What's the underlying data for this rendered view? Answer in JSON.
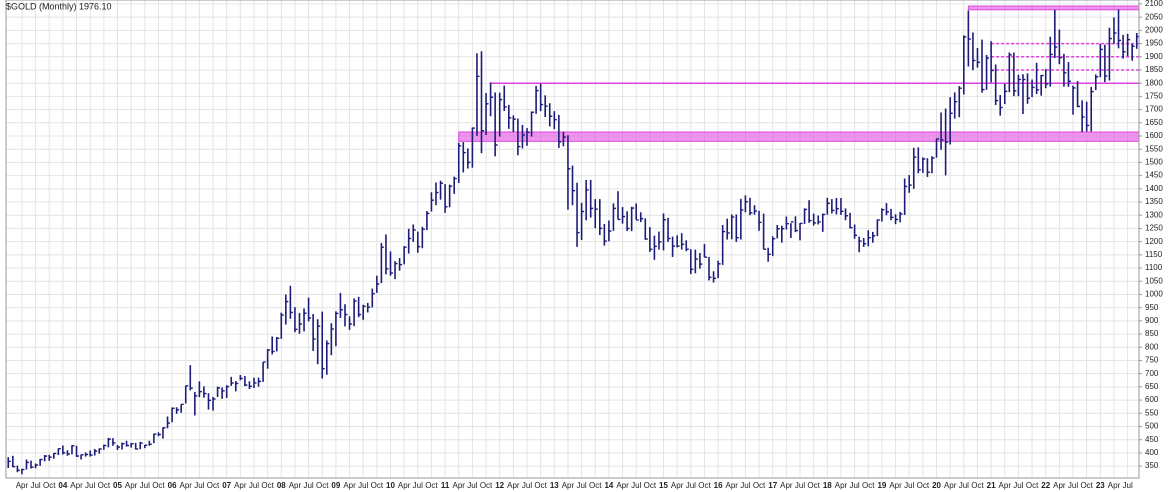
{
  "chart_data": {
    "type": "ohlc",
    "title": "$GOLD (Monthly) 1976.10",
    "categories": [
      null,
      null,
      null,
      "Apr",
      null,
      null,
      "Jul",
      null,
      null,
      "Oct",
      null,
      null,
      "04",
      null,
      null,
      "Apr",
      null,
      null,
      "Jul",
      null,
      null,
      "Oct",
      null,
      null,
      "05",
      null,
      null,
      "Apr",
      null,
      null,
      "Jul",
      null,
      null,
      "Oct",
      null,
      null,
      "06",
      null,
      null,
      "Apr",
      null,
      null,
      "Jul",
      null,
      null,
      "Oct",
      null,
      null,
      "07",
      null,
      null,
      "Apr",
      null,
      null,
      "Jul",
      null,
      null,
      "Oct",
      null,
      null,
      "08",
      null,
      null,
      "Apr",
      null,
      null,
      "Jul",
      null,
      null,
      "Oct",
      null,
      null,
      "09",
      null,
      null,
      "Apr",
      null,
      null,
      "Jul",
      null,
      null,
      "Oct",
      null,
      null,
      "10",
      null,
      null,
      "Apr",
      null,
      null,
      "Jul",
      null,
      null,
      "Oct",
      null,
      null,
      "11",
      null,
      null,
      "Apr",
      null,
      null,
      "Jul",
      null,
      null,
      "Oct",
      null,
      null,
      "12",
      null,
      null,
      "Apr",
      null,
      null,
      "Jul",
      null,
      null,
      "Oct",
      null,
      null,
      "13",
      null,
      null,
      "Apr",
      null,
      null,
      "Jul",
      null,
      null,
      "Oct",
      null,
      null,
      "14",
      null,
      null,
      "Apr",
      null,
      null,
      "Jul",
      null,
      null,
      "Oct",
      null,
      null,
      "15",
      null,
      null,
      "Apr",
      null,
      null,
      "Jul",
      null,
      null,
      "Oct",
      null,
      null,
      "16",
      null,
      null,
      "Apr",
      null,
      null,
      "Jul",
      null,
      null,
      "Oct",
      null,
      null,
      "17",
      null,
      null,
      "Apr",
      null,
      null,
      "Jul",
      null,
      null,
      "Oct",
      null,
      null,
      "18",
      null,
      null,
      "Apr",
      null,
      null,
      "Jul",
      null,
      null,
      "Oct",
      null,
      null,
      "19",
      null,
      null,
      "Apr",
      null,
      null,
      "Jul",
      null,
      null,
      "Oct",
      null,
      null,
      "20",
      null,
      null,
      "Apr",
      null,
      null,
      "Jul",
      null,
      null,
      "Oct",
      null,
      null,
      "21",
      null,
      null,
      "Apr",
      null,
      null,
      "Jul",
      null,
      null,
      "Oct",
      null,
      null,
      "22",
      null,
      null,
      "Apr",
      null,
      null,
      "Jul",
      null,
      null,
      "Oct",
      null,
      null,
      "23",
      null,
      null,
      "Apr",
      null,
      null,
      "Jul",
      null,
      null
    ],
    "high": [
      384,
      389,
      352,
      340,
      375,
      371,
      360,
      377,
      392,
      393,
      399,
      417,
      428,
      410,
      429,
      427,
      394,
      402,
      409,
      415,
      417,
      431,
      457,
      456,
      430,
      439,
      446,
      437,
      438,
      442,
      430,
      446,
      473,
      478,
      497,
      538,
      572,
      573,
      584,
      654,
      732,
      631,
      671,
      652,
      626,
      612,
      651,
      648,
      656,
      688,
      672,
      695,
      691,
      671,
      685,
      685,
      744,
      793,
      841,
      839,
      931,
      1000,
      1033,
      952,
      930,
      947,
      988,
      926,
      906,
      935,
      826,
      891,
      936,
      1006,
      963,
      917,
      985,
      991,
      961,
      968,
      1022,
      1071,
      1195,
      1227,
      1163,
      1126,
      1138,
      1183,
      1249,
      1265,
      1238,
      1256,
      1316,
      1387,
      1424,
      1431,
      1418,
      1416,
      1446,
      1575,
      1577,
      1553,
      1632,
      1913,
      1921,
      1763,
      1803,
      1765,
      1764,
      1791,
      1718,
      1678,
      1666,
      1642,
      1630,
      1693,
      1790,
      1798,
      1754,
      1724,
      1694,
      1680,
      1616,
      1603,
      1488,
      1423,
      1347,
      1434,
      1434,
      1361,
      1361,
      1267,
      1280,
      1345,
      1391,
      1331,
      1315,
      1332,
      1345,
      1311,
      1288,
      1255,
      1223,
      1238,
      1307,
      1290,
      1219,
      1224,
      1232,
      1205,
      1171,
      1170,
      1157,
      1191,
      1142,
      1088,
      1128,
      1263,
      1287,
      1303,
      1303,
      1362,
      1375,
      1366,
      1338,
      1317,
      1306,
      1177,
      1220,
      1263,
      1260,
      1295,
      1270,
      1296,
      1270,
      1326,
      1357,
      1306,
      1299,
      1306,
      1366,
      1361,
      1365,
      1365,
      1326,
      1309,
      1265,
      1219,
      1214,
      1243,
      1237,
      1284,
      1326,
      1346,
      1324,
      1304,
      1313,
      1439,
      1452,
      1555,
      1557,
      1519,
      1516,
      1523,
      1590,
      1689,
      1704,
      1747,
      1765,
      1789,
      1981,
      2075,
      1992,
      1933,
      1965,
      1907,
      1959,
      1871,
      1755,
      1798,
      1916,
      1916,
      1832,
      1834,
      1837,
      1814,
      1877,
      1831,
      1853,
      1976,
      2078,
      2003,
      1911,
      1880,
      1791,
      1808,
      1735,
      1730,
      1786,
      1833,
      1949,
      1946,
      2010,
      2049,
      2079,
      1983,
      1987,
      1949,
      1990
    ],
    "low": [
      343,
      346,
      327,
      319,
      337,
      341,
      342,
      351,
      368,
      370,
      378,
      392,
      394,
      389,
      395,
      385,
      375,
      386,
      386,
      390,
      397,
      412,
      421,
      427,
      411,
      413,
      424,
      420,
      413,
      414,
      418,
      427,
      437,
      463,
      454,
      493,
      516,
      548,
      552,
      587,
      637,
      542,
      611,
      609,
      564,
      560,
      612,
      605,
      608,
      654,
      633,
      675,
      653,
      642,
      646,
      651,
      669,
      719,
      773,
      784,
      832,
      886,
      908,
      857,
      851,
      860,
      898,
      786,
      736,
      682,
      696,
      770,
      804,
      911,
      879,
      866,
      880,
      914,
      904,
      932,
      951,
      1006,
      1043,
      1076,
      1071,
      1058,
      1090,
      1114,
      1155,
      1199,
      1158,
      1175,
      1244,
      1314,
      1338,
      1359,
      1309,
      1330,
      1381,
      1422,
      1462,
      1477,
      1480,
      1601,
      1535,
      1604,
      1675,
      1523,
      1598,
      1695,
      1627,
      1615,
      1527,
      1553,
      1563,
      1598,
      1684,
      1694,
      1672,
      1636,
      1626,
      1555,
      1561,
      1321,
      1338,
      1180,
      1206,
      1281,
      1291,
      1251,
      1225,
      1185,
      1201,
      1241,
      1284,
      1268,
      1240,
      1240,
      1283,
      1274,
      1207,
      1161,
      1131,
      1170,
      1167,
      1199,
      1142,
      1178,
      1170,
      1164,
      1077,
      1080,
      1098,
      1141,
      1053,
      1045,
      1062,
      1112,
      1208,
      1209,
      1199,
      1208,
      1311,
      1300,
      1302,
      1241,
      1171,
      1124,
      1146,
      1212,
      1196,
      1246,
      1214,
      1236,
      1205,
      1267,
      1271,
      1261,
      1265,
      1237,
      1302,
      1307,
      1303,
      1301,
      1281,
      1250,
      1211,
      1160,
      1180,
      1182,
      1196,
      1221,
      1276,
      1300,
      1281,
      1266,
      1273,
      1301,
      1385,
      1400,
      1459,
      1460,
      1445,
      1459,
      1518,
      1548,
      1451,
      1568,
      1666,
      1671,
      1757,
      1863,
      1849,
      1859,
      1764,
      1775,
      1803,
      1717,
      1677,
      1721,
      1766,
      1751,
      1751,
      1683,
      1722,
      1747,
      1759,
      1753,
      1781,
      1787,
      1895,
      1872,
      1787,
      1786,
      1681,
      1709,
      1615,
      1617,
      1617,
      1774,
      1823,
      1804,
      1810,
      1949,
      1932,
      1893,
      1903,
      1885,
      1930
    ],
    "close": [
      368,
      348,
      334,
      337,
      364,
      346,
      354,
      375,
      388,
      384,
      398,
      416,
      400,
      396,
      427,
      388,
      393,
      394,
      392,
      407,
      415,
      428,
      452,
      438,
      422,
      435,
      428,
      435,
      415,
      437,
      429,
      433,
      471,
      470,
      495,
      513,
      569,
      563,
      584,
      654,
      645,
      616,
      632,
      625,
      599,
      604,
      646,
      635,
      651,
      665,
      663,
      682,
      657,
      652,
      665,
      671,
      744,
      790,
      784,
      834,
      922,
      973,
      932,
      868,
      888,
      929,
      911,
      831,
      880,
      719,
      814,
      869,
      928,
      942,
      924,
      888,
      975,
      924,
      955,
      952,
      1003,
      1040,
      1179,
      1097,
      1081,
      1117,
      1113,
      1179,
      1212,
      1244,
      1181,
      1247,
      1307,
      1357,
      1386,
      1421,
      1332,
      1410,
      1439,
      1563,
      1537,
      1500,
      1630,
      1826,
      1620,
      1722,
      1747,
      1566,
      1738,
      1710,
      1669,
      1664,
      1560,
      1604,
      1614,
      1690,
      1772,
      1719,
      1713,
      1675,
      1662,
      1578,
      1596,
      1476,
      1393,
      1234,
      1314,
      1396,
      1326,
      1323,
      1250,
      1202,
      1240,
      1326,
      1284,
      1295,
      1250,
      1327,
      1282,
      1287,
      1210,
      1171,
      1182,
      1199,
      1283,
      1212,
      1183,
      1183,
      1190,
      1171,
      1095,
      1134,
      1115,
      1141,
      1065,
      1061,
      1116,
      1238,
      1233,
      1293,
      1215,
      1320,
      1351,
      1309,
      1316,
      1273,
      1171,
      1152,
      1211,
      1249,
      1249,
      1268,
      1275,
      1242,
      1269,
      1322,
      1280,
      1271,
      1275,
      1303,
      1345,
      1318,
      1325,
      1315,
      1298,
      1253,
      1224,
      1202,
      1192,
      1215,
      1222,
      1282,
      1321,
      1313,
      1292,
      1284,
      1305,
      1409,
      1414,
      1520,
      1472,
      1513,
      1463,
      1517,
      1589,
      1585,
      1577,
      1686,
      1730,
      1781,
      1975,
      1967,
      1886,
      1879,
      1776,
      1895,
      1848,
      1734,
      1708,
      1769,
      1907,
      1771,
      1814,
      1814,
      1743,
      1784,
      1775,
      1829,
      1797,
      1909,
      1937,
      1897,
      1839,
      1807,
      1782,
      1712,
      1672,
      1640,
      1768,
      1824,
      1928,
      1827,
      1969,
      1990,
      1962,
      1919,
      1965,
      1940,
      1976.1
    ],
    "color": "#1c1c78",
    "ylim": [
      305,
      2115
    ],
    "yticks": [
      350,
      400,
      450,
      500,
      550,
      600,
      650,
      700,
      750,
      800,
      850,
      900,
      950,
      1000,
      1050,
      1100,
      1150,
      1200,
      1250,
      1300,
      1350,
      1400,
      1450,
      1500,
      1550,
      1600,
      1650,
      1700,
      1750,
      1800,
      1850,
      1900,
      1950,
      2000,
      2050,
      2100
    ],
    "grid": true,
    "annotation_color": "#e040e0",
    "bands": [
      {
        "ymin": 1580,
        "ymax": 1615,
        "start": 99
      },
      {
        "ymin": 2078,
        "ymax": 2092,
        "start": 211
      }
    ],
    "levels": [
      {
        "value": 1800,
        "start": 106,
        "dashed": false
      },
      {
        "value": 1950,
        "start": 216,
        "dashed": true
      },
      {
        "value": 1900,
        "start": 216,
        "dashed": true
      },
      {
        "value": 1850,
        "start": 216,
        "dashed": true
      }
    ]
  }
}
